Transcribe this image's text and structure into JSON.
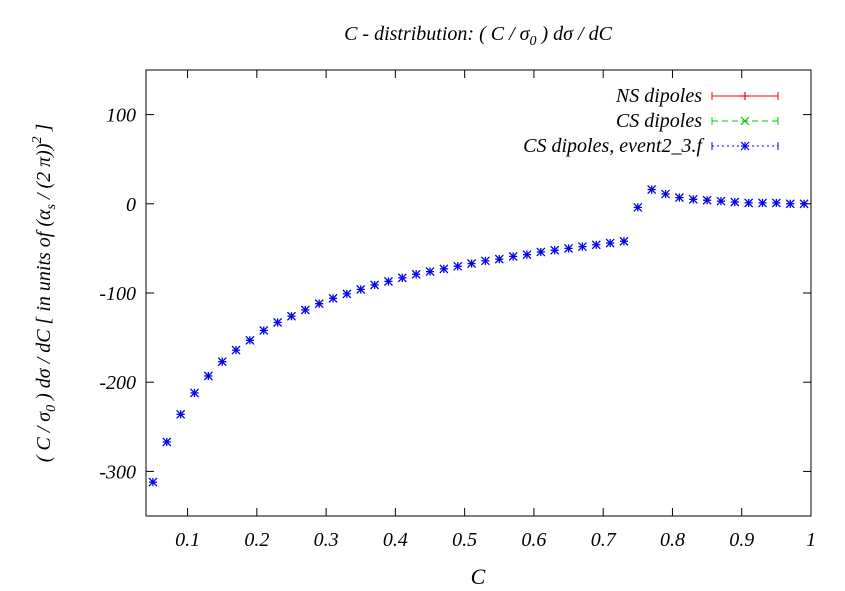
{
  "chart_data": {
    "type": "scatter",
    "title": "C - distribution:  ( C / σ0 ) dσ / dC",
    "xlabel": "C",
    "ylabel": "( C / σ0 ) dσ / dC  [ in units of (αs / (2 π))^2 ]",
    "xlim": [
      0.04,
      1.0
    ],
    "ylim": [
      -350,
      150
    ],
    "xticks": [
      0.1,
      0.2,
      0.3,
      0.4,
      0.5,
      0.6,
      0.7,
      0.8,
      0.9,
      1.0
    ],
    "xtick_labels": [
      "0.1",
      "0.2",
      "0.3",
      "0.4",
      "0.5",
      "0.6",
      "0.7",
      "0.8",
      "0.9",
      "1"
    ],
    "yticks": [
      -300,
      -200,
      -100,
      0,
      100
    ],
    "ytick_labels": [
      "-300",
      "-200",
      "-100",
      "0",
      "100"
    ],
    "legend_position": "top-right",
    "x": [
      0.05,
      0.07,
      0.09,
      0.11,
      0.13,
      0.15,
      0.17,
      0.19,
      0.21,
      0.23,
      0.25,
      0.27,
      0.29,
      0.31,
      0.33,
      0.35,
      0.37,
      0.39,
      0.41,
      0.43,
      0.45,
      0.47,
      0.49,
      0.51,
      0.53,
      0.55,
      0.57,
      0.59,
      0.61,
      0.63,
      0.65,
      0.67,
      0.69,
      0.71,
      0.73,
      0.75,
      0.77,
      0.79,
      0.81,
      0.83,
      0.85,
      0.87,
      0.89,
      0.91,
      0.93,
      0.95,
      0.97,
      0.99
    ],
    "series": [
      {
        "name": "NS dipoles",
        "color": "#ff0000",
        "marker": "plus",
        "values": [
          -312,
          -267,
          -236,
          -212,
          -193,
          -177,
          -164,
          -153,
          -142,
          -133,
          -126,
          -119,
          -112,
          -106,
          -101,
          -96,
          -91,
          -87,
          -83,
          -79,
          -76,
          -73,
          -70,
          -67,
          -64,
          -62,
          -59,
          -57,
          -54,
          -52,
          -50,
          -48,
          -46,
          -44,
          -42,
          -4,
          16,
          11,
          7,
          5,
          4,
          3,
          2,
          1,
          1,
          1,
          0,
          0
        ]
      },
      {
        "name": "CS dipoles",
        "color": "#00cc00",
        "marker": "cross",
        "values": [
          -312,
          -267,
          -236,
          -212,
          -193,
          -177,
          -164,
          -153,
          -142,
          -133,
          -126,
          -119,
          -112,
          -106,
          -101,
          -96,
          -91,
          -87,
          -83,
          -79,
          -76,
          -73,
          -70,
          -67,
          -64,
          -62,
          -59,
          -57,
          -54,
          -52,
          -50,
          -48,
          -46,
          -44,
          -42,
          -4,
          16,
          11,
          7,
          5,
          4,
          3,
          2,
          1,
          1,
          1,
          0,
          0
        ]
      },
      {
        "name": "CS dipoles, event2_3.f",
        "color": "#0000ff",
        "marker": "star",
        "values": [
          -312,
          -267,
          -236,
          -212,
          -193,
          -177,
          -164,
          -153,
          -142,
          -133,
          -126,
          -119,
          -112,
          -106,
          -101,
          -96,
          -91,
          -87,
          -83,
          -79,
          -76,
          -73,
          -70,
          -67,
          -64,
          -62,
          -59,
          -57,
          -54,
          -52,
          -50,
          -48,
          -46,
          -44,
          -42,
          -4,
          16,
          11,
          7,
          5,
          4,
          3,
          2,
          1,
          1,
          1,
          0,
          0
        ]
      }
    ]
  }
}
